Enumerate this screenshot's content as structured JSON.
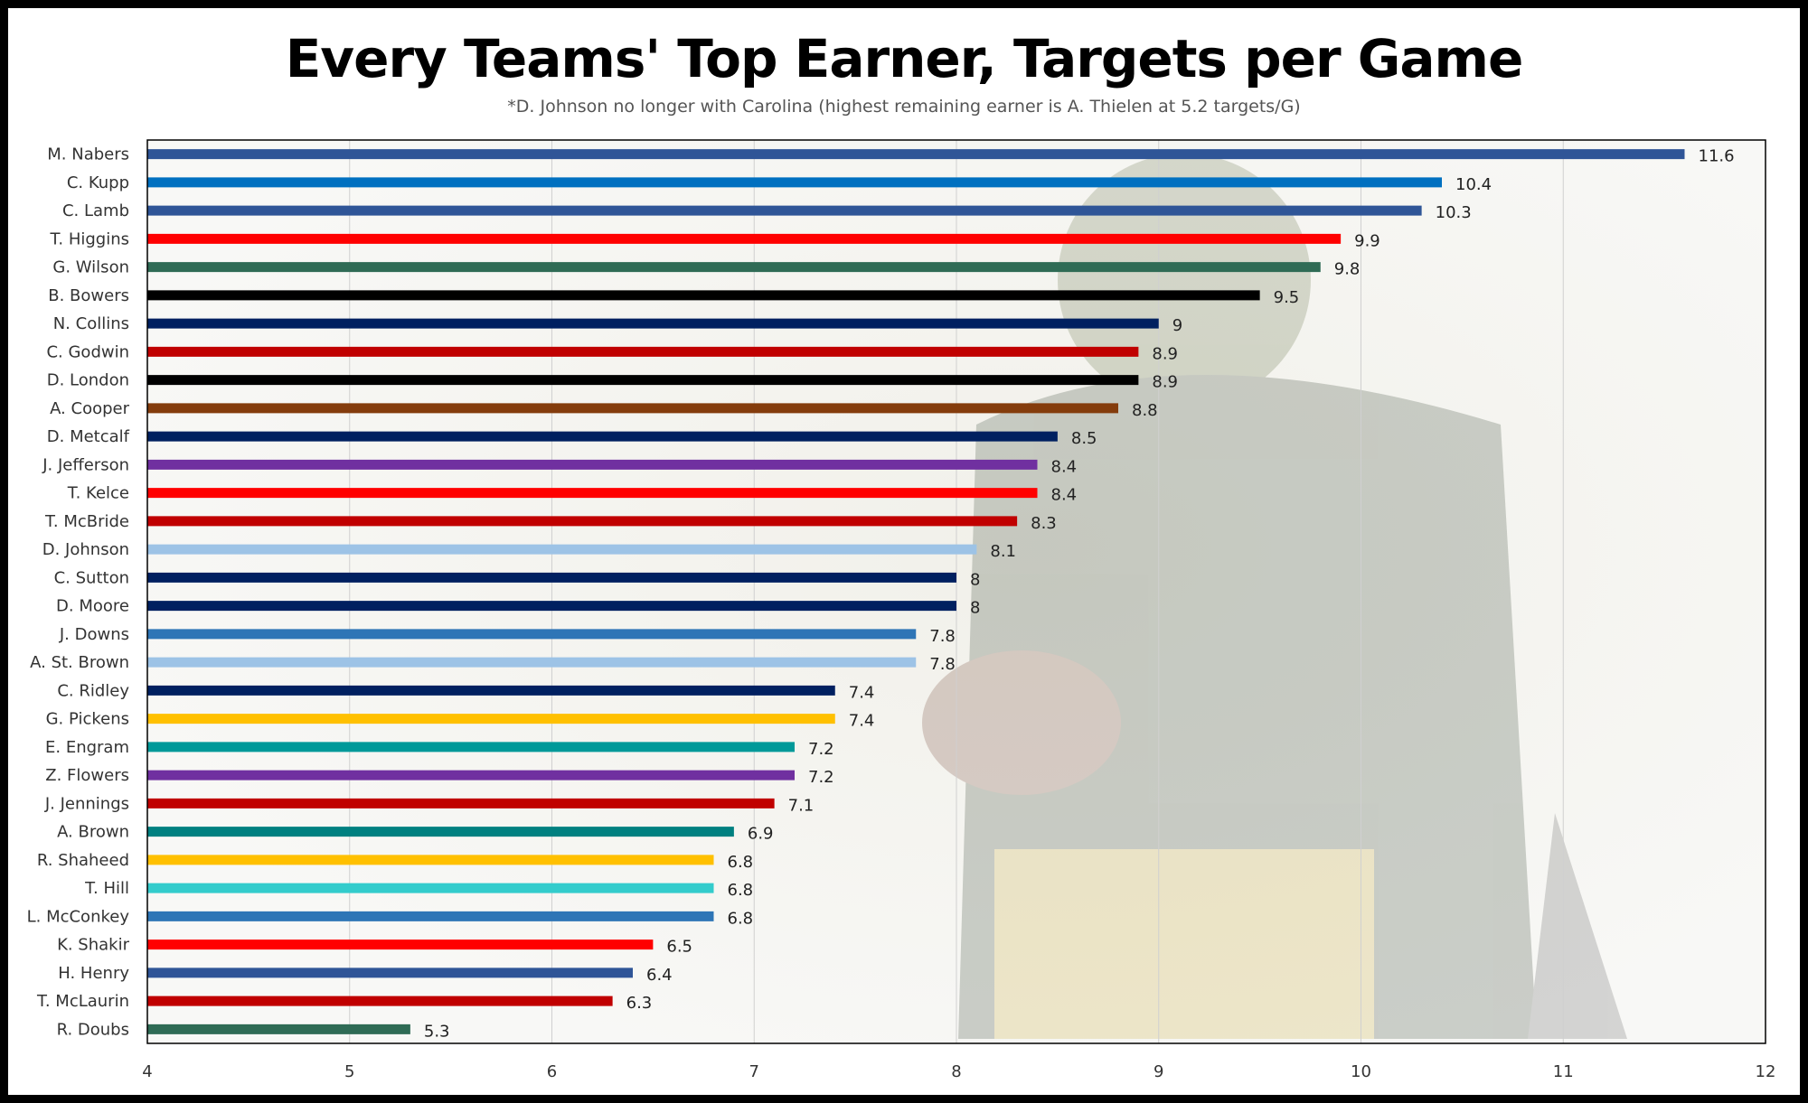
{
  "chart_data": {
    "type": "bar",
    "orientation": "horizontal",
    "title": "Every Teams' Top Earner, Targets per Game",
    "subtitle": "*D. Johnson no longer with Carolina (highest remaining earner is A. Thielen at 5.2 targets/G)",
    "xlabel": "",
    "ylabel": "",
    "xlim": [
      4,
      12
    ],
    "xticks": [
      4,
      5,
      6,
      7,
      8,
      9,
      10,
      11,
      12
    ],
    "grid": "vertical",
    "legend": "none",
    "bars": [
      {
        "label": "M. Nabers",
        "value": 11.6,
        "display": "11.6",
        "color": "#2F5597"
      },
      {
        "label": "C. Kupp",
        "value": 10.4,
        "display": "10.4",
        "color": "#0070C0"
      },
      {
        "label": "C. Lamb",
        "value": 10.3,
        "display": "10.3",
        "color": "#2F5597"
      },
      {
        "label": "T. Higgins",
        "value": 9.9,
        "display": "9.9",
        "color": "#FF0000"
      },
      {
        "label": "G. Wilson",
        "value": 9.8,
        "display": "9.8",
        "color": "#2F6B55"
      },
      {
        "label": "B. Bowers",
        "value": 9.5,
        "display": "9.5",
        "color": "#000000"
      },
      {
        "label": "N. Collins",
        "value": 9.0,
        "display": "9",
        "color": "#002060"
      },
      {
        "label": "C. Godwin",
        "value": 8.9,
        "display": "8.9",
        "color": "#C00000"
      },
      {
        "label": "D. London",
        "value": 8.9,
        "display": "8.9",
        "color": "#000000"
      },
      {
        "label": "A. Cooper",
        "value": 8.8,
        "display": "8.8",
        "color": "#843C0C"
      },
      {
        "label": "D. Metcalf",
        "value": 8.5,
        "display": "8.5",
        "color": "#002060"
      },
      {
        "label": "J. Jefferson",
        "value": 8.4,
        "display": "8.4",
        "color": "#7030A0"
      },
      {
        "label": "T. Kelce",
        "value": 8.4,
        "display": "8.4",
        "color": "#FF0000"
      },
      {
        "label": "T. McBride",
        "value": 8.3,
        "display": "8.3",
        "color": "#C00000"
      },
      {
        "label": "D. Johnson",
        "value": 8.1,
        "display": "8.1",
        "color": "#9DC3E6"
      },
      {
        "label": "C. Sutton",
        "value": 8.0,
        "display": "8",
        "color": "#002060"
      },
      {
        "label": "D. Moore",
        "value": 8.0,
        "display": "8",
        "color": "#002060"
      },
      {
        "label": "J. Downs",
        "value": 7.8,
        "display": "7.8",
        "color": "#2E75B6"
      },
      {
        "label": "A. St. Brown",
        "value": 7.8,
        "display": "7.8",
        "color": "#9DC3E6"
      },
      {
        "label": "C. Ridley",
        "value": 7.4,
        "display": "7.4",
        "color": "#002060"
      },
      {
        "label": "G. Pickens",
        "value": 7.4,
        "display": "7.4",
        "color": "#FFC000"
      },
      {
        "label": "E. Engram",
        "value": 7.2,
        "display": "7.2",
        "color": "#009999"
      },
      {
        "label": "Z. Flowers",
        "value": 7.2,
        "display": "7.2",
        "color": "#7030A0"
      },
      {
        "label": "J. Jennings",
        "value": 7.1,
        "display": "7.1",
        "color": "#C00000"
      },
      {
        "label": "A. Brown",
        "value": 6.9,
        "display": "6.9",
        "color": "#008080"
      },
      {
        "label": "R. Shaheed",
        "value": 6.8,
        "display": "6.8",
        "color": "#FFC000"
      },
      {
        "label": "T. Hill",
        "value": 6.8,
        "display": "6.8",
        "color": "#33CCCC"
      },
      {
        "label": "L. McConkey",
        "value": 6.8,
        "display": "6.8",
        "color": "#2E75B6"
      },
      {
        "label": "K. Shakir",
        "value": 6.5,
        "display": "6.5",
        "color": "#FF0000"
      },
      {
        "label": "H. Henry",
        "value": 6.4,
        "display": "6.4",
        "color": "#2F5597"
      },
      {
        "label": "T. McLaurin",
        "value": 6.3,
        "display": "6.3",
        "color": "#C00000"
      },
      {
        "label": "R. Doubs",
        "value": 5.3,
        "display": "5.3",
        "color": "#2F6B55"
      }
    ]
  }
}
